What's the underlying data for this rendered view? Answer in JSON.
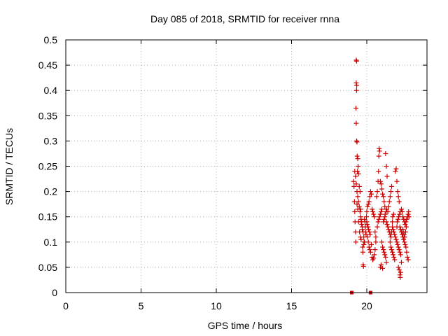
{
  "chart_data": {
    "type": "scatter",
    "title": "Day 085 of 2018, SRMTID for receiver rnna",
    "xlabel": "GPS time / hours",
    "ylabel": "SRMTID / TECUs",
    "xlim": [
      0,
      24
    ],
    "ylim": [
      0,
      0.5
    ],
    "x_ticks": [
      "0",
      "5",
      "10",
      "15",
      "20"
    ],
    "x_tick_values": [
      0,
      5,
      10,
      15,
      20
    ],
    "y_ticks": [
      "0",
      "0.05",
      "0.1",
      "0.15",
      "0.2",
      "0.25",
      "0.3",
      "0.35",
      "0.4",
      "0.45",
      "0.5"
    ],
    "y_tick_values": [
      0,
      0.05,
      0.1,
      0.15,
      0.2,
      0.25,
      0.3,
      0.35,
      0.4,
      0.45,
      0.5
    ],
    "grid": true,
    "marker_color": "#cc0000",
    "series": [
      {
        "name": "SRMTID",
        "marker": "plus",
        "points": [
          [
            19.0,
            0.0
          ],
          [
            20.25,
            0.0
          ],
          [
            19.12,
            0.22
          ],
          [
            19.15,
            0.21
          ],
          [
            19.18,
            0.18
          ],
          [
            19.2,
            0.16
          ],
          [
            19.22,
            0.14
          ],
          [
            19.25,
            0.12
          ],
          [
            19.27,
            0.1
          ],
          [
            19.3,
            0.46
          ],
          [
            19.32,
            0.458
          ],
          [
            19.3,
            0.415
          ],
          [
            19.33,
            0.41
          ],
          [
            19.32,
            0.4
          ],
          [
            19.28,
            0.365
          ],
          [
            19.3,
            0.335
          ],
          [
            19.32,
            0.3
          ],
          [
            19.35,
            0.298
          ],
          [
            19.36,
            0.27
          ],
          [
            19.4,
            0.265
          ],
          [
            19.42,
            0.25
          ],
          [
            19.38,
            0.24
          ],
          [
            19.45,
            0.235
          ],
          [
            19.2,
            0.24
          ],
          [
            19.25,
            0.23
          ],
          [
            19.3,
            0.215
          ],
          [
            19.35,
            0.2
          ],
          [
            19.4,
            0.19
          ],
          [
            19.45,
            0.18
          ],
          [
            19.5,
            0.17
          ],
          [
            19.55,
            0.16
          ],
          [
            19.6,
            0.15
          ],
          [
            19.65,
            0.14
          ],
          [
            19.7,
            0.13
          ],
          [
            19.75,
            0.12
          ],
          [
            19.8,
            0.11
          ],
          [
            19.85,
            0.1
          ],
          [
            19.5,
            0.21
          ],
          [
            19.55,
            0.2
          ],
          [
            19.6,
            0.165
          ],
          [
            19.62,
            0.145
          ],
          [
            19.64,
            0.14
          ],
          [
            19.66,
            0.135
          ],
          [
            19.7,
            0.125
          ],
          [
            19.72,
            0.09
          ],
          [
            19.74,
            0.08
          ],
          [
            19.76,
            0.055
          ],
          [
            19.78,
            0.052
          ],
          [
            19.8,
            0.095
          ],
          [
            19.82,
            0.1
          ],
          [
            19.85,
            0.145
          ],
          [
            19.88,
            0.14
          ],
          [
            19.9,
            0.13
          ],
          [
            19.92,
            0.12
          ],
          [
            19.95,
            0.115
          ],
          [
            19.98,
            0.15
          ],
          [
            20.0,
            0.16
          ],
          [
            20.05,
            0.17
          ],
          [
            20.1,
            0.175
          ],
          [
            20.15,
            0.18
          ],
          [
            20.2,
            0.19
          ],
          [
            20.25,
            0.2
          ],
          [
            20.3,
            0.195
          ],
          [
            20.05,
            0.11
          ],
          [
            20.1,
            0.1
          ],
          [
            20.15,
            0.09
          ],
          [
            20.2,
            0.085
          ],
          [
            20.25,
            0.08
          ],
          [
            20.3,
            0.095
          ],
          [
            20.35,
            0.165
          ],
          [
            20.4,
            0.16
          ],
          [
            20.45,
            0.155
          ],
          [
            20.5,
            0.15
          ],
          [
            20.55,
            0.12
          ],
          [
            20.6,
            0.11
          ],
          [
            20.35,
            0.07
          ],
          [
            20.4,
            0.065
          ],
          [
            20.45,
            0.068
          ],
          [
            20.5,
            0.075
          ],
          [
            20.55,
            0.085
          ],
          [
            20.6,
            0.1
          ],
          [
            20.65,
            0.19
          ],
          [
            20.7,
            0.2
          ],
          [
            20.75,
            0.22
          ],
          [
            20.78,
            0.24
          ],
          [
            20.8,
            0.27
          ],
          [
            20.82,
            0.285
          ],
          [
            20.85,
            0.28
          ],
          [
            20.7,
            0.13
          ],
          [
            20.75,
            0.14
          ],
          [
            20.8,
            0.145
          ],
          [
            20.85,
            0.15
          ],
          [
            20.9,
            0.155
          ],
          [
            20.95,
            0.16
          ],
          [
            21.0,
            0.165
          ],
          [
            20.9,
            0.22
          ],
          [
            20.95,
            0.215
          ],
          [
            21.0,
            0.205
          ],
          [
            21.05,
            0.195
          ],
          [
            21.1,
            0.19
          ],
          [
            21.15,
            0.18
          ],
          [
            21.2,
            0.17
          ],
          [
            21.0,
            0.1
          ],
          [
            21.05,
            0.09
          ],
          [
            21.1,
            0.085
          ],
          [
            21.15,
            0.08
          ],
          [
            21.2,
            0.075
          ],
          [
            21.25,
            0.07
          ],
          [
            21.3,
            0.06
          ],
          [
            20.9,
            0.05
          ],
          [
            20.95,
            0.055
          ],
          [
            21.05,
            0.048
          ],
          [
            21.25,
            0.275
          ],
          [
            21.3,
            0.25
          ],
          [
            21.35,
            0.23
          ],
          [
            21.3,
            0.14
          ],
          [
            21.35,
            0.135
          ],
          [
            21.4,
            0.13
          ],
          [
            21.45,
            0.125
          ],
          [
            21.5,
            0.12
          ],
          [
            21.55,
            0.115
          ],
          [
            21.4,
            0.16
          ],
          [
            21.45,
            0.17
          ],
          [
            21.5,
            0.18
          ],
          [
            21.55,
            0.19
          ],
          [
            21.6,
            0.2
          ],
          [
            21.65,
            0.21
          ],
          [
            21.6,
            0.09
          ],
          [
            21.65,
            0.085
          ],
          [
            21.7,
            0.08
          ],
          [
            21.75,
            0.075
          ],
          [
            21.8,
            0.07
          ],
          [
            21.85,
            0.065
          ],
          [
            21.7,
            0.13
          ],
          [
            21.75,
            0.125
          ],
          [
            21.8,
            0.12
          ],
          [
            21.85,
            0.115
          ],
          [
            21.9,
            0.11
          ],
          [
            21.95,
            0.105
          ],
          [
            21.9,
            0.24
          ],
          [
            21.95,
            0.245
          ],
          [
            22.0,
            0.22
          ],
          [
            22.05,
            0.2
          ],
          [
            22.1,
            0.19
          ],
          [
            22.15,
            0.18
          ],
          [
            22.0,
            0.1
          ],
          [
            22.05,
            0.095
          ],
          [
            22.1,
            0.09
          ],
          [
            22.15,
            0.085
          ],
          [
            22.2,
            0.08
          ],
          [
            22.25,
            0.075
          ],
          [
            22.1,
            0.05
          ],
          [
            22.15,
            0.045
          ],
          [
            22.2,
            0.035
          ],
          [
            22.22,
            0.03
          ],
          [
            22.25,
            0.04
          ],
          [
            22.3,
            0.06
          ],
          [
            22.2,
            0.13
          ],
          [
            22.25,
            0.125
          ],
          [
            22.3,
            0.12
          ],
          [
            22.35,
            0.115
          ],
          [
            22.4,
            0.11
          ],
          [
            22.45,
            0.105
          ],
          [
            22.3,
            0.165
          ],
          [
            22.35,
            0.16
          ],
          [
            22.4,
            0.15
          ],
          [
            22.45,
            0.145
          ],
          [
            22.5,
            0.14
          ],
          [
            22.55,
            0.135
          ],
          [
            22.5,
            0.1
          ],
          [
            22.55,
            0.095
          ],
          [
            22.6,
            0.09
          ],
          [
            22.65,
            0.08
          ],
          [
            22.7,
            0.07
          ],
          [
            22.75,
            0.065
          ],
          [
            22.6,
            0.14
          ],
          [
            22.65,
            0.145
          ],
          [
            22.7,
            0.15
          ],
          [
            22.75,
            0.155
          ],
          [
            22.78,
            0.16
          ],
          [
            22.8,
            0.15
          ],
          [
            19.35,
            0.175
          ],
          [
            19.4,
            0.165
          ],
          [
            19.45,
            0.14
          ],
          [
            19.52,
            0.12
          ],
          [
            19.58,
            0.11
          ],
          [
            19.62,
            0.105
          ],
          [
            20.0,
            0.14
          ],
          [
            20.02,
            0.135
          ],
          [
            20.08,
            0.13
          ],
          [
            20.12,
            0.125
          ],
          [
            20.18,
            0.12
          ],
          [
            20.22,
            0.115
          ],
          [
            21.1,
            0.14
          ],
          [
            21.15,
            0.145
          ],
          [
            21.2,
            0.15
          ],
          [
            21.22,
            0.155
          ],
          [
            21.28,
            0.16
          ],
          [
            21.32,
            0.165
          ],
          [
            21.55,
            0.1
          ],
          [
            21.6,
            0.11
          ],
          [
            21.65,
            0.12
          ],
          [
            21.7,
            0.14
          ],
          [
            21.72,
            0.15
          ],
          [
            21.78,
            0.155
          ],
          [
            22.0,
            0.13
          ],
          [
            22.02,
            0.14
          ],
          [
            22.08,
            0.145
          ],
          [
            22.12,
            0.15
          ],
          [
            22.18,
            0.155
          ],
          [
            22.22,
            0.16
          ],
          [
            22.4,
            0.125
          ],
          [
            22.42,
            0.12
          ],
          [
            22.48,
            0.115
          ],
          [
            22.52,
            0.11
          ],
          [
            22.58,
            0.12
          ],
          [
            22.62,
            0.13
          ]
        ]
      }
    ]
  }
}
